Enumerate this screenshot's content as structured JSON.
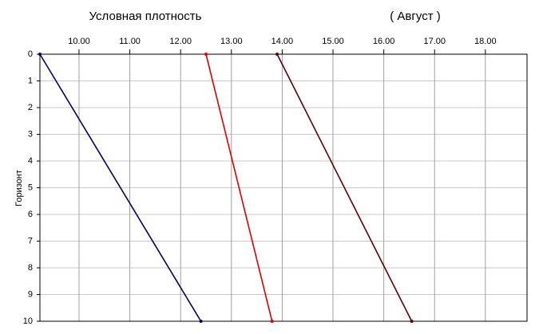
{
  "chart_data": {
    "type": "line",
    "title": "Условная плотность",
    "subtitle": "( Август )",
    "y_label": "Горизонт",
    "xaxis_position": "top",
    "y_inverted": true,
    "grid": true,
    "xlim": [
      9.23,
      18.82
    ],
    "xticks": [
      {
        "value": 10,
        "label": "10.00"
      },
      {
        "value": 11,
        "label": "11.00"
      },
      {
        "value": 12,
        "label": "12.00"
      },
      {
        "value": 13,
        "label": "13.00"
      },
      {
        "value": 14,
        "label": "14.00"
      },
      {
        "value": 15,
        "label": "15.00"
      },
      {
        "value": 16,
        "label": "16.00"
      },
      {
        "value": 17,
        "label": "17.00"
      },
      {
        "value": 18,
        "label": "18.00"
      }
    ],
    "ylim": [
      0,
      10
    ],
    "yticks": [
      0,
      1,
      2,
      3,
      4,
      5,
      6,
      7,
      8,
      9,
      10
    ],
    "series": [
      {
        "color": "#000066",
        "x": [
          9.23,
          12.4
        ],
        "values": [
          0,
          10
        ]
      },
      {
        "color": "#dd0000",
        "x": [
          12.5,
          13.8
        ],
        "values": [
          0,
          10
        ]
      },
      {
        "color": "#600000",
        "x": [
          13.9,
          16.55
        ],
        "values": [
          0,
          10
        ]
      }
    ]
  }
}
